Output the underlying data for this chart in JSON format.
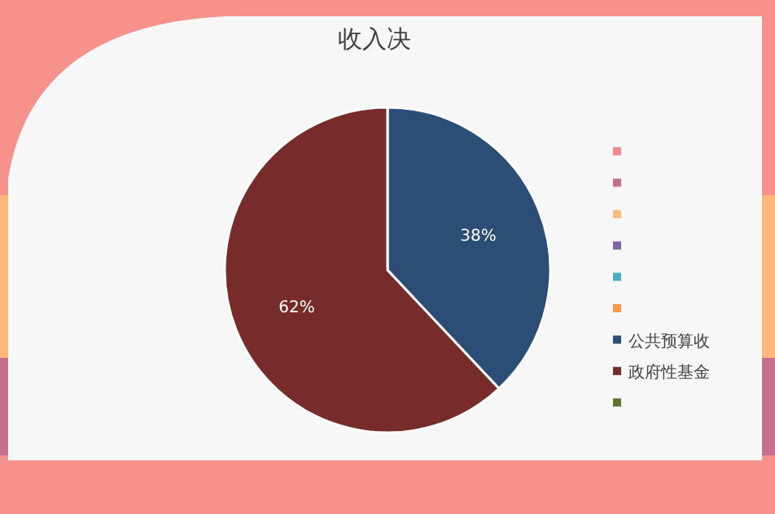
{
  "chart_data": {
    "type": "pie",
    "title": "收入决",
    "categories": [
      null,
      null,
      null,
      null,
      null,
      null,
      "公共预算收",
      "政府性基金",
      null
    ],
    "values": [
      0,
      0,
      0,
      0,
      0,
      0,
      38,
      62,
      0
    ],
    "colors": [
      "#f4898a",
      "#c46f8e",
      "#fdbb7c",
      "#8064a2",
      "#4bacc6",
      "#f79646",
      "#2c4d75",
      "#772c2a",
      "#5f7530"
    ],
    "value_labels": [
      null,
      null,
      null,
      null,
      null,
      null,
      "38%",
      "62%",
      null
    ],
    "legend": "right"
  }
}
